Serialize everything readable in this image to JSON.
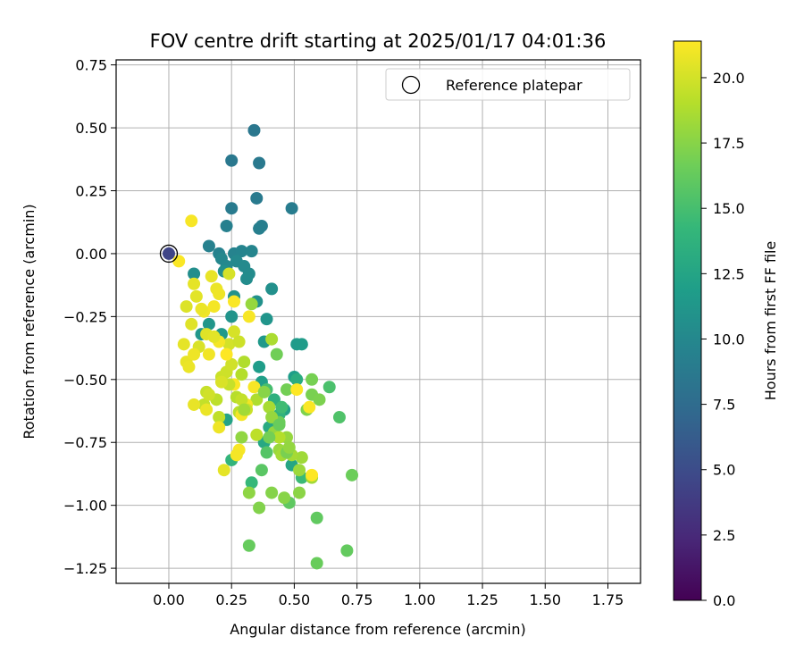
{
  "chart_data": {
    "type": "scatter",
    "title": "FOV centre drift starting at 2025/01/17 04:01:36",
    "xlabel": "Angular distance from reference (arcmin)",
    "ylabel": "Rotation from reference (arcmin)",
    "xlim": [
      -0.21,
      1.88
    ],
    "ylim": [
      -1.31,
      0.77
    ],
    "xticks": [
      "0.00",
      "0.25",
      "0.50",
      "0.75",
      "1.00",
      "1.25",
      "1.50",
      "1.75"
    ],
    "yticks": [
      "0.75",
      "0.50",
      "0.25",
      "0.00",
      "−0.25",
      "−0.50",
      "−0.75",
      "−1.00",
      "−1.25"
    ],
    "grid": true,
    "legend": {
      "placement": "top-right",
      "entries": [
        {
          "label": "Reference platepar",
          "marker": "hollow-circle"
        }
      ]
    },
    "colorbar": {
      "label": "Hours from first FF file",
      "colormap": "viridis",
      "range": [
        0,
        21.4
      ],
      "ticks": [
        "0.0",
        "2.5",
        "5.0",
        "7.5",
        "10.0",
        "12.5",
        "15.0",
        "17.5",
        "20.0"
      ]
    },
    "reference_point": {
      "x": 0.0,
      "y": 0.0,
      "c": 4.5
    },
    "points": [
      {
        "x": 0.34,
        "y": 0.49,
        "c": 8.5
      },
      {
        "x": 0.25,
        "y": 0.37,
        "c": 8.6
      },
      {
        "x": 0.36,
        "y": 0.36,
        "c": 8.7
      },
      {
        "x": 0.35,
        "y": 0.22,
        "c": 8.8
      },
      {
        "x": 0.25,
        "y": 0.18,
        "c": 8.9
      },
      {
        "x": 0.49,
        "y": 0.18,
        "c": 9.0
      },
      {
        "x": 0.37,
        "y": 0.11,
        "c": 9.1
      },
      {
        "x": 0.36,
        "y": 0.1,
        "c": 9.2
      },
      {
        "x": 0.23,
        "y": 0.11,
        "c": 9.3
      },
      {
        "x": 0.16,
        "y": 0.03,
        "c": 9.4
      },
      {
        "x": 0.2,
        "y": 0.0,
        "c": 9.5
      },
      {
        "x": 0.26,
        "y": 0.0,
        "c": 9.6
      },
      {
        "x": 0.29,
        "y": 0.01,
        "c": 9.7
      },
      {
        "x": 0.33,
        "y": 0.01,
        "c": 9.8
      },
      {
        "x": 0.21,
        "y": -0.02,
        "c": 9.9
      },
      {
        "x": 0.23,
        "y": -0.05,
        "c": 10.0
      },
      {
        "x": 0.27,
        "y": -0.03,
        "c": 10.1
      },
      {
        "x": 0.3,
        "y": -0.05,
        "c": 10.2
      },
      {
        "x": 0.32,
        "y": -0.08,
        "c": 10.3
      },
      {
        "x": 0.31,
        "y": -0.1,
        "c": 10.4
      },
      {
        "x": 0.1,
        "y": -0.08,
        "c": 10.5
      },
      {
        "x": 0.22,
        "y": -0.07,
        "c": 10.6
      },
      {
        "x": 0.41,
        "y": -0.14,
        "c": 10.7
      },
      {
        "x": 0.35,
        "y": -0.19,
        "c": 10.8
      },
      {
        "x": 0.26,
        "y": -0.17,
        "c": 10.9
      },
      {
        "x": 0.25,
        "y": -0.25,
        "c": 11.0
      },
      {
        "x": 0.39,
        "y": -0.26,
        "c": 11.1
      },
      {
        "x": 0.16,
        "y": -0.28,
        "c": 11.2
      },
      {
        "x": 0.13,
        "y": -0.32,
        "c": 11.3
      },
      {
        "x": 0.21,
        "y": -0.32,
        "c": 11.4
      },
      {
        "x": 0.38,
        "y": -0.35,
        "c": 11.5
      },
      {
        "x": 0.51,
        "y": -0.36,
        "c": 11.6
      },
      {
        "x": 0.53,
        "y": -0.36,
        "c": 11.7
      },
      {
        "x": 0.36,
        "y": -0.45,
        "c": 11.8
      },
      {
        "x": 0.5,
        "y": -0.49,
        "c": 11.9
      },
      {
        "x": 0.37,
        "y": -0.51,
        "c": 12.0
      },
      {
        "x": 0.46,
        "y": -0.62,
        "c": 12.2
      },
      {
        "x": 0.23,
        "y": -0.66,
        "c": 12.4
      },
      {
        "x": 0.49,
        "y": -0.84,
        "c": 12.6
      },
      {
        "x": 0.38,
        "y": -0.75,
        "c": 12.8
      },
      {
        "x": 0.4,
        "y": -0.69,
        "c": 13.0
      },
      {
        "x": 0.51,
        "y": -0.5,
        "c": 13.2
      },
      {
        "x": 0.42,
        "y": -0.58,
        "c": 13.5
      },
      {
        "x": 0.44,
        "y": -0.64,
        "c": 13.8
      },
      {
        "x": 0.25,
        "y": -0.82,
        "c": 14.0
      },
      {
        "x": 0.33,
        "y": -0.91,
        "c": 14.3
      },
      {
        "x": 0.53,
        "y": -0.89,
        "c": 14.5
      },
      {
        "x": 0.45,
        "y": -0.61,
        "c": 14.7
      },
      {
        "x": 0.39,
        "y": -0.54,
        "c": 15.0
      },
      {
        "x": 0.64,
        "y": -0.53,
        "c": 15.2
      },
      {
        "x": 0.68,
        "y": -0.65,
        "c": 15.4
      },
      {
        "x": 0.39,
        "y": -0.79,
        "c": 15.6
      },
      {
        "x": 0.37,
        "y": -0.86,
        "c": 15.8
      },
      {
        "x": 0.48,
        "y": -0.99,
        "c": 16.0
      },
      {
        "x": 0.59,
        "y": -1.05,
        "c": 16.1
      },
      {
        "x": 0.71,
        "y": -1.18,
        "c": 16.2
      },
      {
        "x": 0.32,
        "y": -1.16,
        "c": 16.3
      },
      {
        "x": 0.59,
        "y": -1.23,
        "c": 16.4
      },
      {
        "x": 0.73,
        "y": -0.88,
        "c": 16.5
      },
      {
        "x": 0.44,
        "y": -0.67,
        "c": 16.6
      },
      {
        "x": 0.43,
        "y": -0.4,
        "c": 16.7
      },
      {
        "x": 0.47,
        "y": -0.54,
        "c": 16.8
      },
      {
        "x": 0.57,
        "y": -0.5,
        "c": 16.9
      },
      {
        "x": 0.57,
        "y": -0.56,
        "c": 17.0
      },
      {
        "x": 0.6,
        "y": -0.58,
        "c": 17.1
      },
      {
        "x": 0.55,
        "y": -0.62,
        "c": 17.2
      },
      {
        "x": 0.36,
        "y": -1.01,
        "c": 17.3
      },
      {
        "x": 0.41,
        "y": -0.95,
        "c": 17.4
      },
      {
        "x": 0.46,
        "y": -0.97,
        "c": 17.5
      },
      {
        "x": 0.52,
        "y": -0.95,
        "c": 17.6
      },
      {
        "x": 0.32,
        "y": -0.95,
        "c": 17.7
      },
      {
        "x": 0.29,
        "y": -0.73,
        "c": 17.8
      },
      {
        "x": 0.42,
        "y": -0.71,
        "c": 17.9
      },
      {
        "x": 0.47,
        "y": -0.73,
        "c": 18.0
      },
      {
        "x": 0.44,
        "y": -0.78,
        "c": 18.1
      },
      {
        "x": 0.52,
        "y": -0.86,
        "c": 18.2
      },
      {
        "x": 0.53,
        "y": -0.81,
        "c": 18.3
      },
      {
        "x": 0.57,
        "y": -0.89,
        "c": 18.4
      },
      {
        "x": 0.45,
        "y": -0.8,
        "c": 18.5
      },
      {
        "x": 0.4,
        "y": -0.61,
        "c": 18.6
      },
      {
        "x": 0.41,
        "y": -0.34,
        "c": 18.7
      },
      {
        "x": 0.35,
        "y": -0.58,
        "c": 18.8
      },
      {
        "x": 0.3,
        "y": -0.43,
        "c": 18.9
      },
      {
        "x": 0.29,
        "y": -0.48,
        "c": 19.0
      },
      {
        "x": 0.27,
        "y": -0.57,
        "c": 19.1
      },
      {
        "x": 0.28,
        "y": -0.63,
        "c": 19.2
      },
      {
        "x": 0.19,
        "y": -0.58,
        "c": 19.3
      },
      {
        "x": 0.2,
        "y": -0.65,
        "c": 19.4
      },
      {
        "x": 0.14,
        "y": -0.6,
        "c": 19.5
      },
      {
        "x": 0.15,
        "y": -0.55,
        "c": 19.6
      },
      {
        "x": 0.21,
        "y": -0.49,
        "c": 19.7
      },
      {
        "x": 0.23,
        "y": -0.47,
        "c": 19.8
      },
      {
        "x": 0.25,
        "y": -0.44,
        "c": 19.9
      },
      {
        "x": 0.24,
        "y": -0.36,
        "c": 20.0
      },
      {
        "x": 0.26,
        "y": -0.31,
        "c": 20.1
      },
      {
        "x": 0.12,
        "y": -0.37,
        "c": 20.2
      },
      {
        "x": 0.07,
        "y": -0.21,
        "c": 20.3
      },
      {
        "x": 0.09,
        "y": -0.28,
        "c": 20.4
      },
      {
        "x": 0.11,
        "y": -0.17,
        "c": 20.5
      },
      {
        "x": 0.1,
        "y": -0.12,
        "c": 20.6
      },
      {
        "x": 0.17,
        "y": -0.09,
        "c": 20.7
      },
      {
        "x": 0.19,
        "y": -0.14,
        "c": 20.8
      },
      {
        "x": 0.2,
        "y": -0.16,
        "c": 20.9
      },
      {
        "x": 0.14,
        "y": -0.23,
        "c": 21.0
      },
      {
        "x": 0.18,
        "y": -0.21,
        "c": 21.1
      },
      {
        "x": 0.09,
        "y": 0.13,
        "c": 21.2
      },
      {
        "x": 0.04,
        "y": -0.03,
        "c": 21.3
      },
      {
        "x": 0.06,
        "y": -0.36,
        "c": 20.6
      },
      {
        "x": 0.07,
        "y": -0.43,
        "c": 20.7
      },
      {
        "x": 0.08,
        "y": -0.45,
        "c": 20.8
      },
      {
        "x": 0.1,
        "y": -0.4,
        "c": 20.9
      },
      {
        "x": 0.16,
        "y": -0.4,
        "c": 21.0
      },
      {
        "x": 0.2,
        "y": -0.35,
        "c": 21.1
      },
      {
        "x": 0.32,
        "y": -0.25,
        "c": 21.2
      },
      {
        "x": 0.26,
        "y": -0.19,
        "c": 21.3
      },
      {
        "x": 0.23,
        "y": -0.4,
        "c": 21.4
      },
      {
        "x": 0.26,
        "y": -0.52,
        "c": 21.3
      },
      {
        "x": 0.34,
        "y": -0.53,
        "c": 21.2
      },
      {
        "x": 0.29,
        "y": -0.64,
        "c": 21.1
      },
      {
        "x": 0.31,
        "y": -0.6,
        "c": 21.0
      },
      {
        "x": 0.2,
        "y": -0.69,
        "c": 20.9
      },
      {
        "x": 0.15,
        "y": -0.62,
        "c": 20.8
      },
      {
        "x": 0.1,
        "y": -0.6,
        "c": 20.7
      },
      {
        "x": 0.22,
        "y": -0.86,
        "c": 20.6
      },
      {
        "x": 0.28,
        "y": -0.78,
        "c": 21.2
      },
      {
        "x": 0.27,
        "y": -0.8,
        "c": 21.1
      },
      {
        "x": 0.51,
        "y": -0.54,
        "c": 21.4
      },
      {
        "x": 0.56,
        "y": -0.61,
        "c": 21.3
      },
      {
        "x": 0.57,
        "y": -0.88,
        "c": 21.4
      },
      {
        "x": 0.29,
        "y": -0.58,
        "c": 19.5
      },
      {
        "x": 0.24,
        "y": -0.52,
        "c": 19.6
      },
      {
        "x": 0.44,
        "y": -0.73,
        "c": 19.0
      },
      {
        "x": 0.41,
        "y": -0.65,
        "c": 18.0
      },
      {
        "x": 0.35,
        "y": -0.72,
        "c": 19.3
      },
      {
        "x": 0.31,
        "y": -0.62,
        "c": 19.7
      },
      {
        "x": 0.15,
        "y": -0.32,
        "c": 20.4
      },
      {
        "x": 0.18,
        "y": -0.33,
        "c": 20.5
      },
      {
        "x": 0.13,
        "y": -0.22,
        "c": 20.8
      },
      {
        "x": 0.24,
        "y": -0.08,
        "c": 20.1
      },
      {
        "x": 0.16,
        "y": -0.56,
        "c": 19.9
      },
      {
        "x": 0.21,
        "y": -0.51,
        "c": 20.2
      },
      {
        "x": 0.49,
        "y": -0.8,
        "c": 18.5
      },
      {
        "x": 0.38,
        "y": -0.55,
        "c": 17.5
      },
      {
        "x": 0.44,
        "y": -0.68,
        "c": 16.4
      },
      {
        "x": 0.4,
        "y": -0.73,
        "c": 16.8
      },
      {
        "x": 0.47,
        "y": -0.79,
        "c": 17.0
      },
      {
        "x": 0.48,
        "y": -0.77,
        "c": 17.9
      },
      {
        "x": 0.3,
        "y": -0.62,
        "c": 18.4
      },
      {
        "x": 0.33,
        "y": -0.2,
        "c": 18.0
      },
      {
        "x": 0.28,
        "y": -0.35,
        "c": 19.8
      }
    ]
  }
}
